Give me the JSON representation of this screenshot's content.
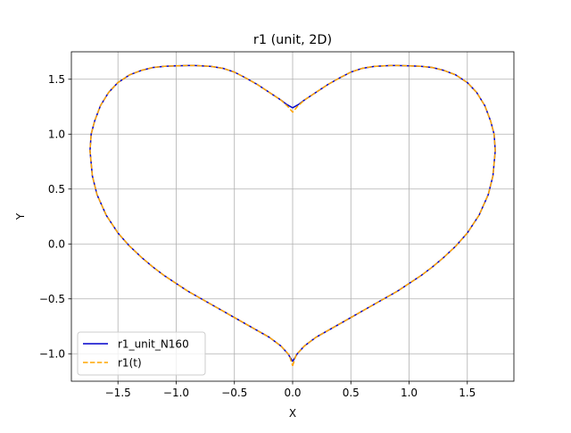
{
  "chart_data": {
    "type": "line",
    "title": "r1 (unit, 2D)",
    "xlabel": "X",
    "ylabel": "Y",
    "xlim": [
      -1.9,
      1.9
    ],
    "ylim": [
      -1.25,
      1.75
    ],
    "xticks": [
      -1.5,
      -1.0,
      -0.5,
      0.0,
      0.5,
      1.0,
      1.5
    ],
    "xtick_labels": [
      "−1.5",
      "−1.0",
      "−0.5",
      "0.0",
      "0.5",
      "1.0",
      "1.5"
    ],
    "yticks": [
      -1.0,
      -0.5,
      0.0,
      0.5,
      1.0,
      1.5
    ],
    "ytick_labels": [
      "−1.0",
      "−0.5",
      "0.0",
      "0.5",
      "1.0",
      "1.5"
    ],
    "grid": true,
    "legend_position": "lower-left",
    "series": [
      {
        "name": "r1_unit_N160",
        "color": "#0000cc",
        "style": "solid",
        "x": [
          0.0,
          0.04,
          0.1,
          0.2,
          0.3,
          0.4,
          0.5,
          0.6,
          0.7,
          0.8,
          0.9,
          1.0,
          1.1,
          1.2,
          1.3,
          1.4,
          1.5,
          1.6,
          1.68,
          1.72,
          1.74,
          1.73,
          1.7,
          1.65,
          1.58,
          1.5,
          1.4,
          1.3,
          1.2,
          1.1,
          1.0,
          0.9,
          0.84,
          0.7,
          0.6,
          0.5,
          0.4,
          0.3,
          0.2,
          0.1,
          0.05,
          0.0,
          -0.05,
          -0.1,
          -0.2,
          -0.3,
          -0.4,
          -0.5,
          -0.6,
          -0.7,
          -0.84,
          -0.9,
          -1.0,
          -1.1,
          -1.2,
          -1.3,
          -1.4,
          -1.5,
          -1.58,
          -1.65,
          -1.7,
          -1.73,
          -1.74,
          -1.72,
          -1.68,
          -1.6,
          -1.5,
          -1.4,
          -1.3,
          -1.2,
          -1.1,
          -1.0,
          -0.9,
          -0.8,
          -0.7,
          -0.6,
          -0.5,
          -0.4,
          -0.3,
          -0.2,
          -0.1,
          -0.04,
          0.0
        ],
        "y": [
          -1.07,
          -1.0,
          -0.93,
          -0.85,
          -0.79,
          -0.73,
          -0.67,
          -0.61,
          -0.55,
          -0.49,
          -0.43,
          -0.36,
          -0.29,
          -0.21,
          -0.12,
          -0.02,
          0.1,
          0.26,
          0.45,
          0.62,
          0.85,
          1.0,
          1.12,
          1.26,
          1.38,
          1.47,
          1.54,
          1.58,
          1.607,
          1.618,
          1.622,
          1.625,
          1.625,
          1.617,
          1.6,
          1.565,
          1.51,
          1.45,
          1.38,
          1.31,
          1.27,
          1.24,
          1.27,
          1.31,
          1.38,
          1.45,
          1.51,
          1.565,
          1.6,
          1.617,
          1.625,
          1.625,
          1.622,
          1.618,
          1.607,
          1.58,
          1.54,
          1.47,
          1.38,
          1.26,
          1.12,
          1.0,
          0.85,
          0.62,
          0.45,
          0.26,
          0.1,
          -0.02,
          -0.12,
          -0.21,
          -0.29,
          -0.36,
          -0.43,
          -0.49,
          -0.55,
          -0.61,
          -0.67,
          -0.73,
          -0.79,
          -0.85,
          -0.93,
          -1.0,
          -1.07
        ]
      },
      {
        "name": "r1(t)",
        "color": "#ffa500",
        "style": "dashed",
        "x": [
          0.0,
          0.03,
          0.1,
          0.2,
          0.3,
          0.4,
          0.5,
          0.6,
          0.7,
          0.8,
          0.9,
          1.0,
          1.1,
          1.2,
          1.3,
          1.4,
          1.5,
          1.6,
          1.68,
          1.72,
          1.74,
          1.73,
          1.7,
          1.65,
          1.58,
          1.5,
          1.4,
          1.3,
          1.2,
          1.1,
          1.0,
          0.9,
          0.84,
          0.7,
          0.6,
          0.5,
          0.4,
          0.3,
          0.2,
          0.1,
          0.04,
          0.0,
          -0.04,
          -0.1,
          -0.2,
          -0.3,
          -0.4,
          -0.5,
          -0.6,
          -0.7,
          -0.84,
          -0.9,
          -1.0,
          -1.1,
          -1.2,
          -1.3,
          -1.4,
          -1.5,
          -1.58,
          -1.65,
          -1.7,
          -1.73,
          -1.74,
          -1.72,
          -1.68,
          -1.6,
          -1.5,
          -1.4,
          -1.3,
          -1.2,
          -1.1,
          -1.0,
          -0.9,
          -0.8,
          -0.7,
          -0.6,
          -0.5,
          -0.4,
          -0.3,
          -0.2,
          -0.1,
          -0.03,
          0.0
        ],
        "y": [
          -1.11,
          -1.01,
          -0.93,
          -0.85,
          -0.79,
          -0.73,
          -0.67,
          -0.61,
          -0.55,
          -0.49,
          -0.43,
          -0.36,
          -0.29,
          -0.21,
          -0.12,
          -0.02,
          0.1,
          0.26,
          0.45,
          0.62,
          0.85,
          1.0,
          1.12,
          1.26,
          1.38,
          1.47,
          1.54,
          1.58,
          1.607,
          1.618,
          1.622,
          1.625,
          1.625,
          1.617,
          1.6,
          1.565,
          1.51,
          1.45,
          1.38,
          1.31,
          1.25,
          1.2,
          1.25,
          1.31,
          1.38,
          1.45,
          1.51,
          1.565,
          1.6,
          1.617,
          1.625,
          1.625,
          1.622,
          1.618,
          1.607,
          1.58,
          1.54,
          1.47,
          1.38,
          1.26,
          1.12,
          1.0,
          0.85,
          0.62,
          0.45,
          0.26,
          0.1,
          -0.02,
          -0.12,
          -0.21,
          -0.29,
          -0.36,
          -0.43,
          -0.49,
          -0.55,
          -0.61,
          -0.67,
          -0.73,
          -0.79,
          -0.85,
          -0.93,
          -1.01,
          -1.11
        ]
      }
    ]
  }
}
